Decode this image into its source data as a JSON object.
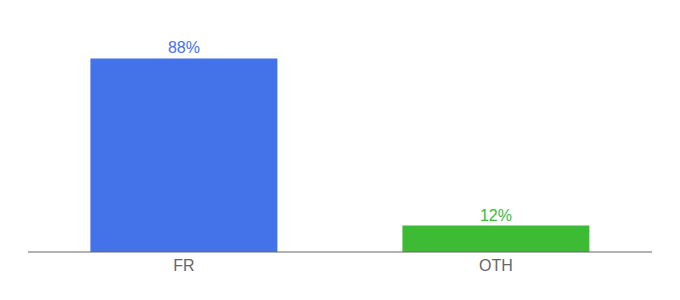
{
  "chart_data": {
    "type": "bar",
    "categories": [
      "FR",
      "OTH"
    ],
    "values": [
      88,
      12
    ],
    "colors": [
      "#4472e8",
      "#3dbb35"
    ],
    "value_labels": [
      "88%",
      "12%"
    ],
    "data_labels": true,
    "ylim": [
      0,
      100
    ],
    "tick_labels": "x",
    "grid": false
  }
}
